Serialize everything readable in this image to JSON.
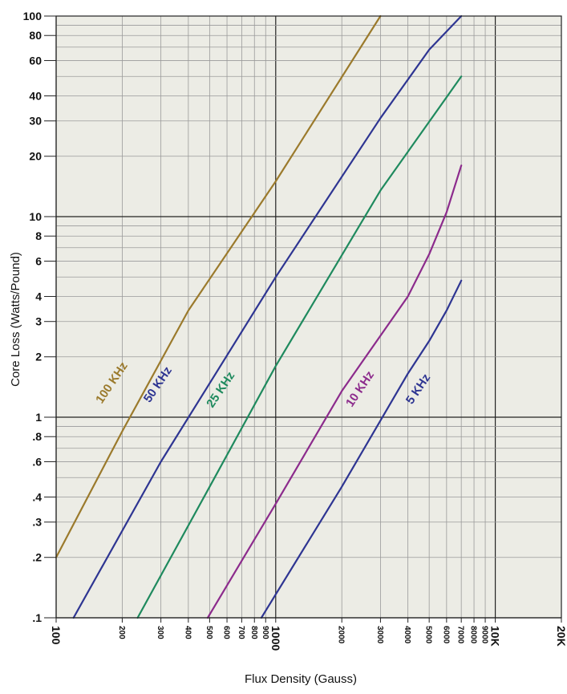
{
  "chart_data": {
    "type": "line",
    "title": "",
    "xlabel": "Flux Density (Gauss)",
    "ylabel": "Core Loss (Watts/Pound)",
    "x_scale": "log",
    "y_scale": "log",
    "xlim": [
      100,
      20000
    ],
    "ylim": [
      0.1,
      100
    ],
    "grid": true,
    "legend": "inline labels",
    "background_color": "#ecece5",
    "grid_color": "#9a9a9a",
    "major_grid_color": "#222222",
    "x_ticks": [
      {
        "value": 100,
        "label": "100",
        "major": true
      },
      {
        "value": 200,
        "label": "200",
        "major": false
      },
      {
        "value": 300,
        "label": "300",
        "major": false
      },
      {
        "value": 400,
        "label": "400",
        "major": false
      },
      {
        "value": 500,
        "label": "500",
        "major": false
      },
      {
        "value": 600,
        "label": "600",
        "major": false
      },
      {
        "value": 700,
        "label": "700",
        "major": false
      },
      {
        "value": 800,
        "label": "800",
        "major": false
      },
      {
        "value": 900,
        "label": "900",
        "major": false
      },
      {
        "value": 1000,
        "label": "1000",
        "major": true
      },
      {
        "value": 2000,
        "label": "2000",
        "major": false
      },
      {
        "value": 3000,
        "label": "3000",
        "major": false
      },
      {
        "value": 4000,
        "label": "4000",
        "major": false
      },
      {
        "value": 5000,
        "label": "5000",
        "major": false
      },
      {
        "value": 6000,
        "label": "6000",
        "major": false
      },
      {
        "value": 7000,
        "label": "7000",
        "major": false
      },
      {
        "value": 8000,
        "label": "8000",
        "major": false
      },
      {
        "value": 9000,
        "label": "9000",
        "major": false
      },
      {
        "value": 10000,
        "label": "10K",
        "major": true
      },
      {
        "value": 20000,
        "label": "20K",
        "major": true
      }
    ],
    "y_ticks": [
      {
        "value": 0.1,
        "label": ".1",
        "major": true
      },
      {
        "value": 0.2,
        "label": ".2",
        "major": false
      },
      {
        "value": 0.3,
        "label": ".3",
        "major": false
      },
      {
        "value": 0.4,
        "label": ".4",
        "major": false
      },
      {
        "value": 0.6,
        "label": ".6",
        "major": false
      },
      {
        "value": 0.8,
        "label": ".8",
        "major": false
      },
      {
        "value": 1,
        "label": "1",
        "major": true
      },
      {
        "value": 2,
        "label": "2",
        "major": false
      },
      {
        "value": 3,
        "label": "3",
        "major": false
      },
      {
        "value": 4,
        "label": "4",
        "major": false
      },
      {
        "value": 6,
        "label": "6",
        "major": false
      },
      {
        "value": 8,
        "label": "8",
        "major": false
      },
      {
        "value": 10,
        "label": "10",
        "major": true
      },
      {
        "value": 20,
        "label": "20",
        "major": false
      },
      {
        "value": 30,
        "label": "30",
        "major": false
      },
      {
        "value": 40,
        "label": "40",
        "major": false
      },
      {
        "value": 60,
        "label": "60",
        "major": false
      },
      {
        "value": 80,
        "label": "80",
        "major": false
      },
      {
        "value": 100,
        "label": "100",
        "major": true
      }
    ],
    "series": [
      {
        "name": "100 KHz",
        "color": "#9b7a2c",
        "label_at": [
          185,
          1.45
        ],
        "label_angle": -56,
        "points": [
          [
            100,
            0.2
          ],
          [
            200,
            0.85
          ],
          [
            400,
            3.4
          ],
          [
            1000,
            15
          ],
          [
            3000,
            100
          ]
        ]
      },
      {
        "name": "50 KHz",
        "color": "#2e3592",
        "label_at": [
          300,
          1.42
        ],
        "label_angle": -56,
        "points": [
          [
            120,
            0.1
          ],
          [
            300,
            0.6
          ],
          [
            1000,
            5
          ],
          [
            3000,
            31
          ],
          [
            5000,
            68
          ],
          [
            7000,
            100
          ]
        ]
      },
      {
        "name": "25 KHz",
        "color": "#1f8a5e",
        "label_at": [
          580,
          1.34
        ],
        "label_angle": -56,
        "points": [
          [
            235,
            0.1
          ],
          [
            500,
            0.45
          ],
          [
            1000,
            1.8
          ],
          [
            3000,
            13.5
          ],
          [
            7000,
            50
          ]
        ]
      },
      {
        "name": "10 KHz",
        "color": "#8c2b8c",
        "label_at": [
          2500,
          1.35
        ],
        "label_angle": -56,
        "points": [
          [
            490,
            0.1
          ],
          [
            1000,
            0.37
          ],
          [
            2000,
            1.35
          ],
          [
            4000,
            4
          ],
          [
            5000,
            6.5
          ],
          [
            6000,
            10.5
          ],
          [
            7000,
            18
          ]
        ]
      },
      {
        "name": "5 KHz",
        "color": "#2e3592",
        "label_at": [
          4600,
          1.35
        ],
        "label_angle": -56,
        "points": [
          [
            860,
            0.1
          ],
          [
            2000,
            0.45
          ],
          [
            4000,
            1.65
          ],
          [
            5000,
            2.4
          ],
          [
            6000,
            3.4
          ],
          [
            7000,
            4.8
          ]
        ]
      }
    ]
  }
}
